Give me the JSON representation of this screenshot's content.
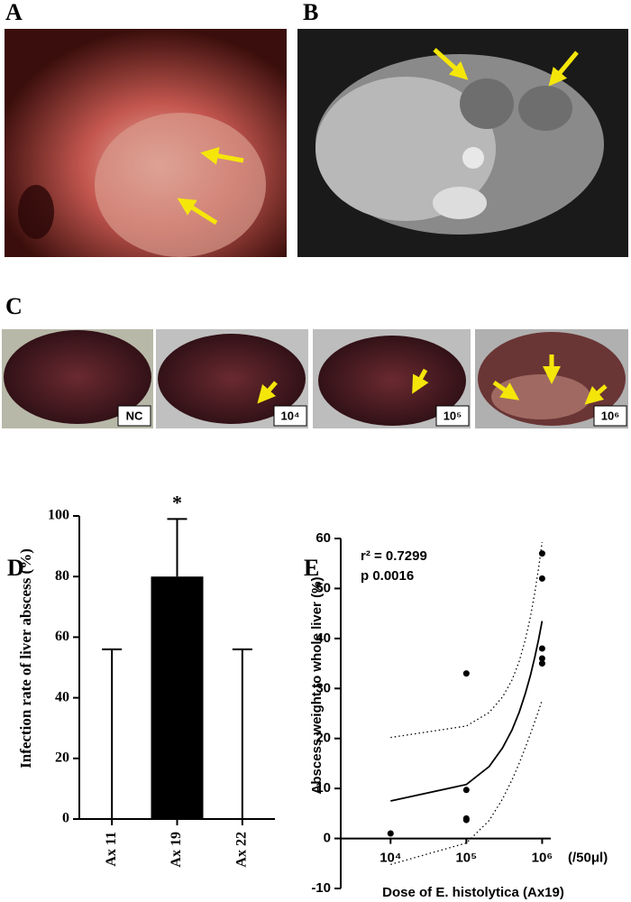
{
  "panel_labels": [
    "A",
    "B",
    "C",
    "D",
    "E"
  ],
  "photo_labels": [
    "NC",
    "10⁴",
    "10⁵",
    "10⁶"
  ],
  "chart_data": [
    {
      "type": "bar",
      "ylabel": "Infection rate of liver abscess (%)",
      "categories": [
        "Ax 11",
        "Ax 19",
        "Ax 22"
      ],
      "values": [
        0,
        80,
        0
      ],
      "errors": [
        56,
        19,
        56
      ],
      "color": "#000000",
      "annotation": "*",
      "ylim": [
        0,
        100
      ],
      "yticks": [
        0,
        20,
        40,
        60,
        80,
        100
      ]
    },
    {
      "type": "scatter",
      "xlabel": "Dose of E. histolytica (Ax19)",
      "x_unit": "(/50μl)",
      "ylabel": "Abscess weight to whole liver (%)",
      "annotations": [
        "r² = 0.7299",
        "p 0.0016"
      ],
      "x": [
        10000,
        100000,
        100000,
        100000,
        100000,
        1000000,
        1000000,
        1000000,
        1000000,
        1000000
      ],
      "values": [
        1,
        33,
        9.7,
        4,
        3.7,
        57,
        52,
        38,
        36,
        35
      ],
      "color": "#000000",
      "xlog": true,
      "xlim": [
        2200,
        1300000
      ],
      "xticks": [
        {
          "value": 10000,
          "label": "10⁴"
        },
        {
          "value": 100000,
          "label": "10⁵"
        },
        {
          "value": 1000000,
          "label": "10⁶"
        }
      ],
      "ylim": [
        -10,
        60
      ],
      "yticks": [
        -10,
        0,
        10,
        20,
        30,
        40,
        50,
        60
      ],
      "fit": {
        "x": [
          10000,
          100000,
          200000,
          300000,
          400000,
          500000,
          600000,
          700000,
          800000,
          900000,
          1000000
        ],
        "values": [
          7.5,
          10.8,
          14.4,
          18.1,
          21.7,
          25.3,
          29.0,
          32.6,
          36.3,
          39.9,
          43.5
        ],
        "upper": [
          20.2,
          22.5,
          25.2,
          28.3,
          31.7,
          35.5,
          39.8,
          44.3,
          49.2,
          54.2,
          59.3
        ],
        "lower": [
          -5.2,
          -0.9,
          3.6,
          7.9,
          11.7,
          15.1,
          18.2,
          20.9,
          23.4,
          25.6,
          27.7
        ]
      }
    }
  ]
}
